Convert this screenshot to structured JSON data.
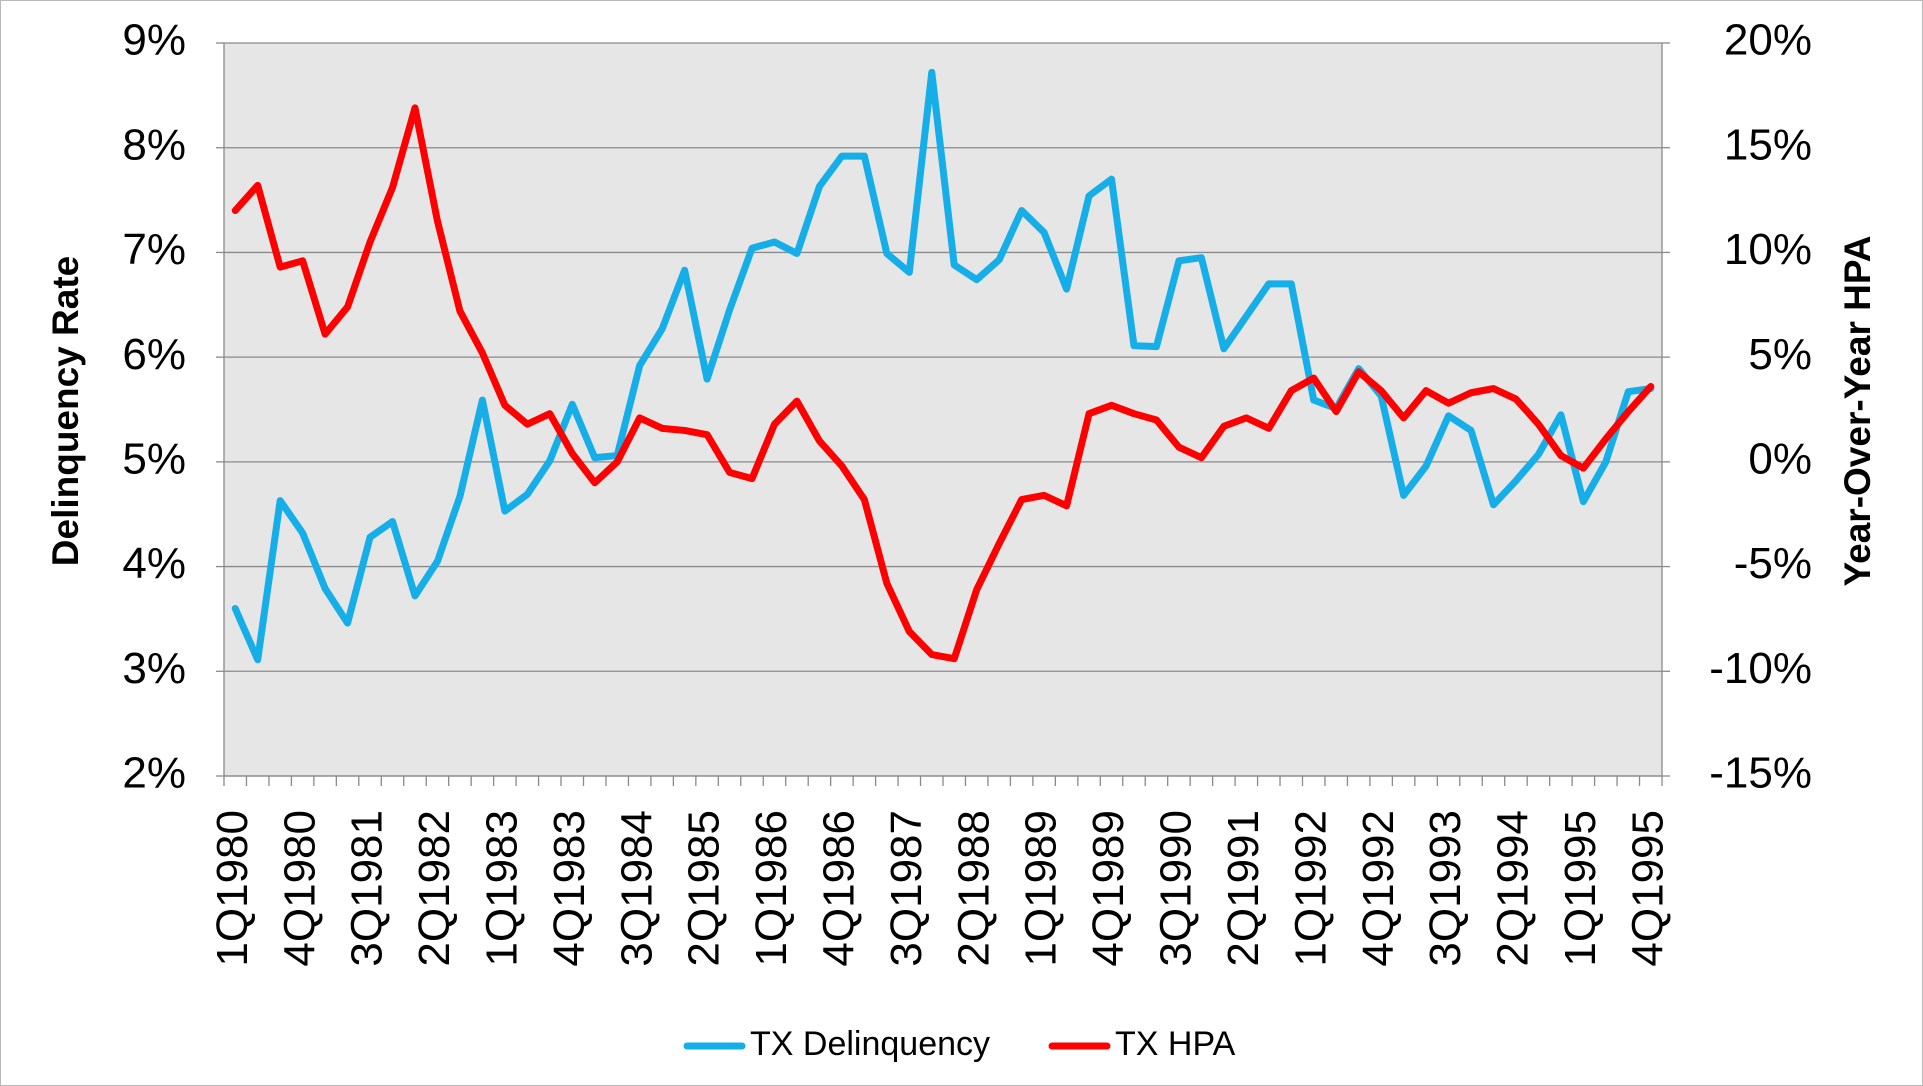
{
  "chart_data": {
    "type": "line",
    "categories": [
      "1Q1980",
      null,
      null,
      "4Q1980",
      null,
      null,
      "3Q1981",
      null,
      null,
      "2Q1982",
      null,
      null,
      "1Q1983",
      null,
      null,
      "4Q1983",
      null,
      null,
      "3Q1984",
      null,
      null,
      "2Q1985",
      null,
      null,
      "1Q1986",
      null,
      null,
      "4Q1986",
      null,
      null,
      "3Q1987",
      null,
      null,
      "2Q1988",
      null,
      null,
      "1Q1989",
      null,
      null,
      "4Q1989",
      null,
      null,
      "3Q1990",
      null,
      null,
      "2Q1991",
      null,
      null,
      "1Q1992",
      null,
      null,
      "4Q1992",
      null,
      null,
      "3Q1993",
      null,
      null,
      "2Q1994",
      null,
      null,
      "1Q1995",
      null,
      null,
      "4Q1995"
    ],
    "series": [
      {
        "name": "TX Delinquency",
        "color": "#16aee8",
        "values": [
          3.6,
          3.11,
          4.63,
          4.32,
          3.79,
          3.46,
          4.28,
          4.43,
          3.72,
          4.05,
          4.67,
          5.59,
          4.53,
          4.69,
          5.01,
          5.55,
          5.04,
          5.06,
          5.92,
          6.27,
          6.83,
          5.79,
          6.45,
          7.04,
          7.1,
          6.99,
          7.63,
          7.92,
          7.92,
          6.99,
          6.81,
          8.72,
          6.88,
          6.74,
          6.93,
          7.4,
          7.19,
          6.65,
          7.54,
          7.7,
          6.11,
          6.1,
          6.92,
          6.95,
          6.08,
          6.39,
          6.7,
          6.7,
          5.59,
          5.51,
          5.89,
          5.63,
          4.68,
          4.96,
          5.44,
          5.3,
          4.59,
          4.82,
          5.07,
          5.45,
          4.62,
          5.0,
          5.67,
          5.7
        ]
      },
      {
        "name": "TX HPA",
        "color": "#ff0000",
        "axis": "y2",
        "values": [
          12.0,
          13.2,
          9.3,
          9.6,
          6.1,
          7.4,
          10.5,
          13.1,
          16.9,
          11.5,
          7.2,
          5.2,
          2.7,
          1.8,
          2.3,
          0.4,
          -1.0,
          0.0,
          2.1,
          1.6,
          1.5,
          1.3,
          -0.5,
          -0.8,
          1.8,
          2.9,
          1.0,
          -0.2,
          -1.8,
          -5.8,
          -8.1,
          -9.2,
          -9.4,
          -6.1,
          -3.9,
          -1.8,
          -1.6,
          -2.1,
          2.3,
          2.7,
          2.3,
          2.0,
          0.7,
          0.2,
          1.7,
          2.1,
          1.6,
          3.4,
          4.0,
          2.4,
          4.3,
          3.4,
          2.1,
          3.4,
          2.8,
          3.3,
          3.5,
          3.0,
          1.8,
          0.3,
          -0.3,
          1.1,
          2.4,
          3.6
        ]
      }
    ],
    "y_label": "Delinquency Rate",
    "y2_label": "Year-Over-Year HPA",
    "ylim": [
      2,
      9
    ],
    "yticks": [
      {
        "value": 2,
        "label": "2%"
      },
      {
        "value": 3,
        "label": "3%"
      },
      {
        "value": 4,
        "label": "4%"
      },
      {
        "value": 5,
        "label": "5%"
      },
      {
        "value": 6,
        "label": "6%"
      },
      {
        "value": 7,
        "label": "7%"
      },
      {
        "value": 8,
        "label": "8%"
      },
      {
        "value": 9,
        "label": "9%"
      }
    ],
    "y2lim": [
      -15,
      20
    ],
    "y2ticks": [
      {
        "value": -15,
        "label": "-15%"
      },
      {
        "value": -10,
        "label": "-10%"
      },
      {
        "value": -5,
        "label": "-5%"
      },
      {
        "value": 0,
        "label": "0%"
      },
      {
        "value": 5,
        "label": "5%"
      },
      {
        "value": 10,
        "label": "10%"
      },
      {
        "value": 15,
        "label": "15%"
      },
      {
        "value": 20,
        "label": "20%"
      }
    ],
    "grid": true,
    "legend": "bottom"
  }
}
